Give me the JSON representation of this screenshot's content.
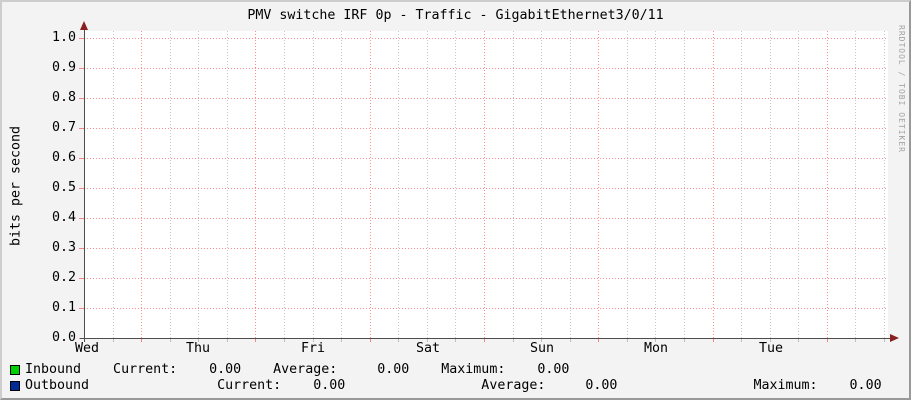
{
  "title": "PMV switche IRF 0p - Traffic - GigabitEthernet3/0/11",
  "watermark": "RRDTOOL / TOBI OETIKER",
  "chart_data": {
    "type": "line",
    "title": "PMV switche IRF 0p - Traffic - GigabitEthernet3/0/11",
    "xlabel": "",
    "ylabel": "bits per second",
    "ylim": [
      0.0,
      1.0
    ],
    "y_ticks": [
      "1.0",
      "0.9",
      "0.8",
      "0.7",
      "0.6",
      "0.5",
      "0.4",
      "0.3",
      "0.2",
      "0.1",
      "0.0"
    ],
    "x_tick_labels": [
      "Wed",
      "Thu",
      "Fri",
      "Sat",
      "Sun",
      "Mon",
      "Tue"
    ],
    "grid": "on",
    "legend_position": "bottom",
    "series": [
      {
        "name": "Inbound",
        "color": "#00cf00",
        "values": [],
        "current": 0.0,
        "average": 0.0,
        "maximum": 0.0
      },
      {
        "name": "Outbound",
        "color": "#002a97",
        "values": [],
        "current": 0.0,
        "average": 0.0,
        "maximum": 0.0
      }
    ]
  },
  "legend": {
    "rows": [
      {
        "name": "Inbound",
        "swatch_color": "#00cf00",
        "current_label": "Current:",
        "current": "0.00",
        "average_label": "Average:",
        "average": "0.00",
        "maximum_label": "Maximum:",
        "maximum": "0.00",
        "line": "Inbound    Current:    0.00    Average:     0.00    Maximum:    0.00"
      },
      {
        "name": "Outbound",
        "swatch_color": "#002a97",
        "current_label": "Current:",
        "current": "0.00",
        "average_label": "Average:",
        "average": "0.00",
        "maximum_label": "Maximum:",
        "maximum": "0.00",
        "line": "Outbound                Current:    0.00                 Average:     0.00                 Maximum:    0.00"
      }
    ]
  },
  "colors": {
    "background": "#f3f3f3",
    "canvas": "#ffffff",
    "major_grid": "rgba(255,0,0,0.45)",
    "minor_grid": "rgba(0,0,0,0.22)",
    "axis": "#4d4d4d",
    "arrow": "#8a1f1f",
    "shade_top_left": "#cdcdcd",
    "shade_bottom_right": "#999999",
    "watermark": "#a3a3a3"
  }
}
